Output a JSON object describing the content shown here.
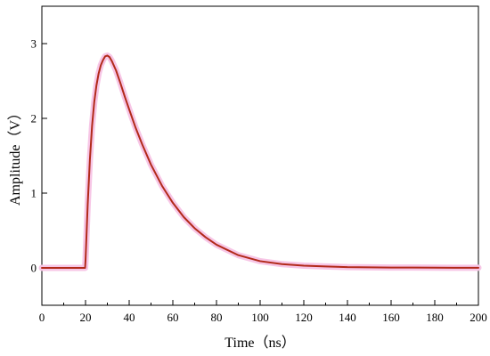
{
  "chart_data": {
    "type": "line",
    "title": "",
    "xlabel": "Time（ns）",
    "ylabel": "Amplitude（V）",
    "xlim": [
      0,
      200
    ],
    "ylim": [
      -0.5,
      3.5
    ],
    "x_ticks": [
      0,
      20,
      40,
      60,
      80,
      100,
      120,
      140,
      160,
      180,
      200
    ],
    "y_ticks": [
      0,
      1,
      2,
      3
    ],
    "grid": false,
    "legend": "none",
    "line_color": "#b22a1a",
    "highlight_color": "#f7c6e6",
    "series": [
      {
        "x": [
          0,
          19.8,
          20,
          21,
          22,
          23,
          24,
          25,
          26,
          27,
          28,
          29,
          30,
          31,
          32,
          34,
          36,
          38,
          40,
          43,
          46,
          50,
          55,
          60,
          65,
          70,
          75,
          80,
          90,
          100,
          110,
          120,
          130,
          140,
          150,
          160,
          170,
          180,
          190,
          200
        ],
        "y": [
          0,
          0,
          0.1,
          0.85,
          1.45,
          1.9,
          2.22,
          2.44,
          2.6,
          2.71,
          2.78,
          2.83,
          2.84,
          2.82,
          2.77,
          2.64,
          2.47,
          2.29,
          2.12,
          1.87,
          1.65,
          1.38,
          1.1,
          0.87,
          0.68,
          0.53,
          0.41,
          0.31,
          0.17,
          0.09,
          0.05,
          0.03,
          0.02,
          0.01,
          0.007,
          0.005,
          0.004,
          0.003,
          0.002,
          0.002
        ]
      }
    ]
  }
}
